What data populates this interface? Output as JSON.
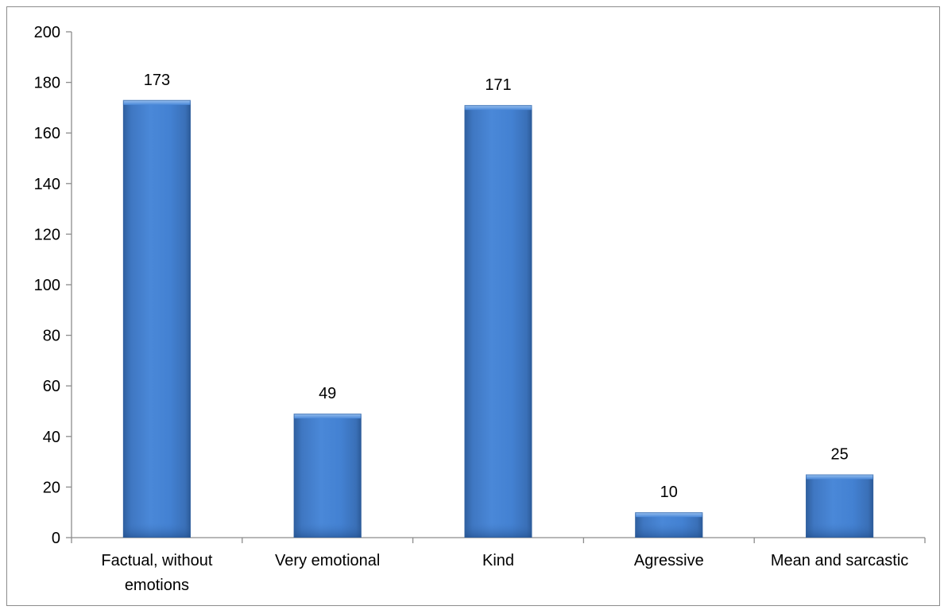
{
  "chart_data": {
    "type": "bar",
    "categories": [
      [
        "Factual, without",
        "emotions"
      ],
      [
        "Very emotional"
      ],
      [
        "Kind"
      ],
      [
        "Agressive"
      ],
      [
        "Mean and sarcastic"
      ]
    ],
    "values": [
      173,
      49,
      171,
      10,
      25
    ],
    "data_labels": [
      "173",
      "49",
      "171",
      "10",
      "25"
    ],
    "title": "",
    "xlabel": "",
    "ylabel": "",
    "ylim": [
      0,
      200
    ],
    "yticks": [
      0,
      20,
      40,
      60,
      80,
      100,
      120,
      140,
      160,
      180,
      200
    ],
    "grid": false,
    "legend": "none",
    "colors": {
      "bar_fill": "#4a86d4",
      "bar_edge_light": "#7fb0ec",
      "bar_edge_dark": "#2f5f9e",
      "axis": "#8c8c8c",
      "text": "#000000"
    }
  }
}
